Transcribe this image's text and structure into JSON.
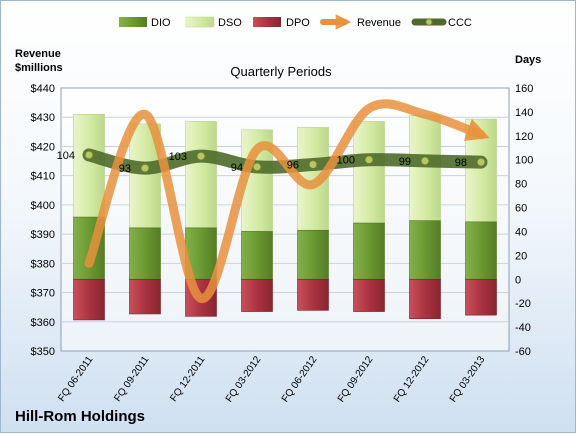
{
  "chart_data": {
    "type": "combo",
    "title": "Quarterly Periods",
    "company": "Hill-Rom Holdings",
    "left_axis": {
      "label_line1": "Revenue",
      "label_line2": "$millions",
      "min": 350,
      "max": 440,
      "step": 10,
      "prefix": "$"
    },
    "right_axis": {
      "label": "Days",
      "min": -60,
      "max": 160,
      "step": 20
    },
    "categories": [
      "FQ 06-2011",
      "FQ 09-2011",
      "FQ 12-2011",
      "FQ 03-2012",
      "FQ 06-2012",
      "FQ 09-2012",
      "FQ 12-2012",
      "FQ 03-2013"
    ],
    "series": [
      {
        "name": "DIO",
        "kind": "stacked-bar",
        "axis": "right",
        "color": "#6e9a35",
        "values": [
          52,
          43,
          43,
          40,
          41,
          47,
          49,
          48
        ]
      },
      {
        "name": "DSO",
        "kind": "stacked-bar",
        "axis": "right",
        "color": "#d9edb0",
        "values": [
          86,
          87,
          89,
          85,
          86,
          85,
          88,
          86
        ]
      },
      {
        "name": "DPO",
        "kind": "negative-bar",
        "axis": "right",
        "color": "#b33a44",
        "values": [
          -34,
          -29,
          -31,
          -27,
          -26,
          -27,
          -33,
          -30
        ]
      },
      {
        "name": "Revenue",
        "kind": "line",
        "axis": "left",
        "color": "#e8913d",
        "values": [
          380,
          431,
          368,
          419,
          407,
          433,
          431,
          424
        ]
      },
      {
        "name": "CCC",
        "kind": "line",
        "axis": "right",
        "color": "#4f6a2b",
        "values": [
          104,
          93,
          103,
          94,
          96,
          100,
          99,
          98
        ]
      }
    ]
  }
}
